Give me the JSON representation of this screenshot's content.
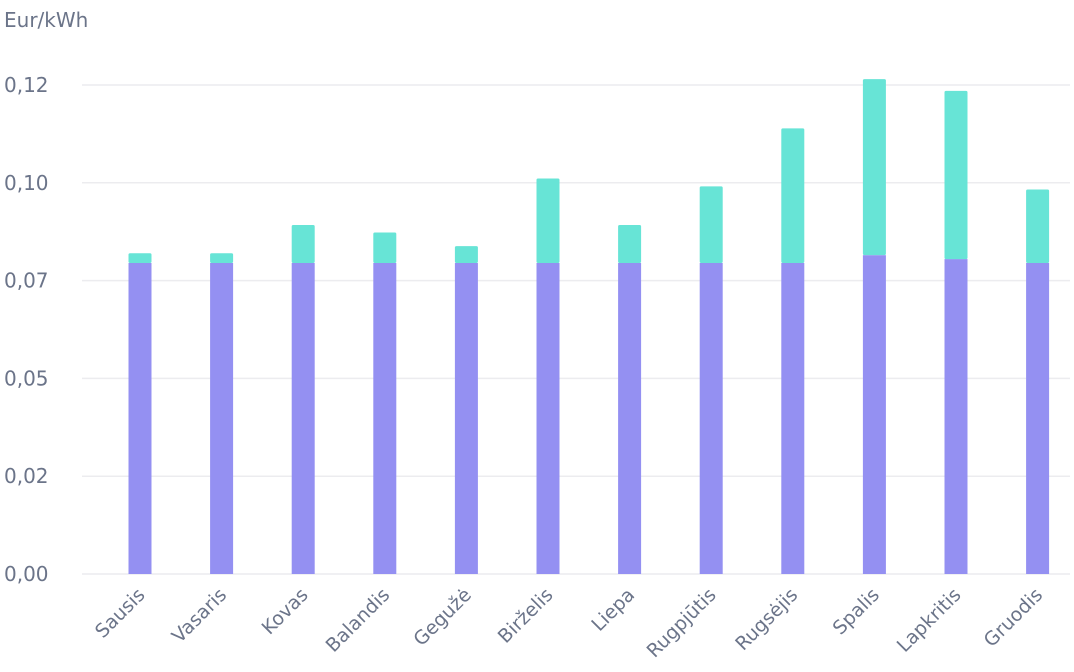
{
  "chart_data": {
    "type": "bar",
    "stacked": true,
    "unit_label": "Eur/kWh",
    "title": "",
    "xlabel": "",
    "ylabel": "Eur/kWh",
    "ylim": [
      0,
      0.125
    ],
    "yticks": [
      0,
      0.025,
      0.05,
      0.075,
      0.1,
      0.125
    ],
    "ytick_labels": [
      "0,00",
      "0,02",
      "0,05",
      "0,07",
      "0,10",
      "0,12"
    ],
    "grid": true,
    "legend": "none",
    "categories": [
      "Sausis",
      "Vasaris",
      "Kovas",
      "Balandis",
      "Gegužė",
      "Birželis",
      "Liepa",
      "Rugpjūtis",
      "Rugsėjis",
      "Spalis",
      "Lapkritis",
      "Gruodis"
    ],
    "series": [
      {
        "color": "#9490f2",
        "values": [
          0.0795,
          0.0795,
          0.0795,
          0.0795,
          0.0795,
          0.0795,
          0.0795,
          0.0795,
          0.0795,
          0.0815,
          0.0805,
          0.0795
        ]
      },
      {
        "color": "#67e4d6",
        "values": [
          0.0025,
          0.0025,
          0.0097,
          0.0078,
          0.0043,
          0.0216,
          0.0097,
          0.0196,
          0.0344,
          0.045,
          0.043,
          0.0188
        ]
      }
    ]
  }
}
